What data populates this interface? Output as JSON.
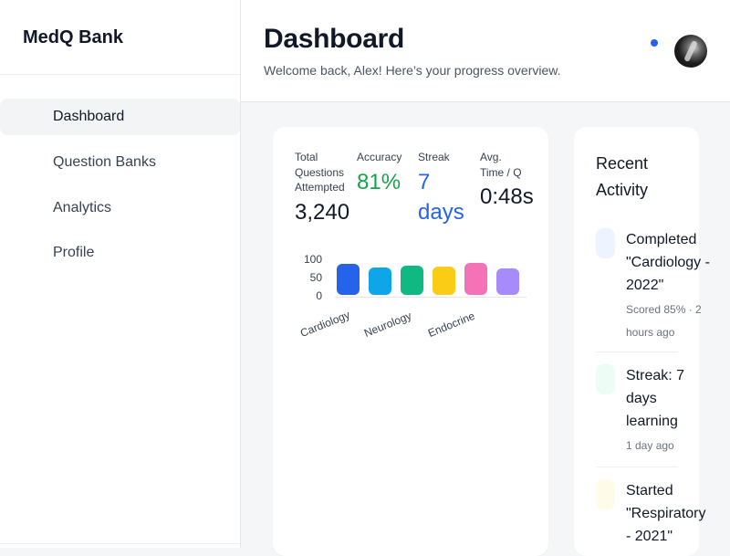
{
  "brand": "MedQ Bank",
  "nav": [
    {
      "label": "Dashboard",
      "active": true
    },
    {
      "label": "Question Banks",
      "active": false
    },
    {
      "label": "Analytics",
      "active": false
    },
    {
      "label": "Profile",
      "active": false
    }
  ],
  "header": {
    "title": "Dashboard",
    "subtitle": "Welcome back, Alex! Here’s your progress overview."
  },
  "stats": [
    {
      "label": "Total Questions Attempted",
      "value": "3,240",
      "color": "#111827"
    },
    {
      "label": "Accuracy",
      "value": "81%",
      "color": "#16a34a"
    },
    {
      "label": "Streak",
      "value": "7 days",
      "color": "#2563eb"
    },
    {
      "label": "Avg. Time / Q",
      "value": "0:48s",
      "color": "#111827"
    }
  ],
  "chart_data": {
    "type": "bar",
    "title": "",
    "xlabel": "",
    "ylabel": "",
    "ylim": [
      0,
      100
    ],
    "yticks": [
      "100",
      "50",
      "0"
    ],
    "categories": [
      "Cardiology",
      "",
      "Neurology",
      "",
      "Endocrine",
      ""
    ],
    "values": [
      85,
      75,
      80,
      78,
      88,
      72
    ],
    "colors": [
      "#2563eb",
      "#0ea5e9",
      "#10b981",
      "#facc15",
      "#f472b6",
      "#a78bfa"
    ]
  },
  "activity": {
    "title": "Recent Activity",
    "items": [
      {
        "title": "Completed \"Cardiology - 2022\"",
        "meta": "Scored 85% · 2 hours ago",
        "icon_color": "#eef4ff"
      },
      {
        "title": "Streak: 7 days learning",
        "meta": "1 day ago",
        "icon_color": "#ecfdf3"
      },
      {
        "title": "Started \"Respiratory - 2021\"",
        "meta": "",
        "icon_color": "#fefce8"
      }
    ]
  }
}
